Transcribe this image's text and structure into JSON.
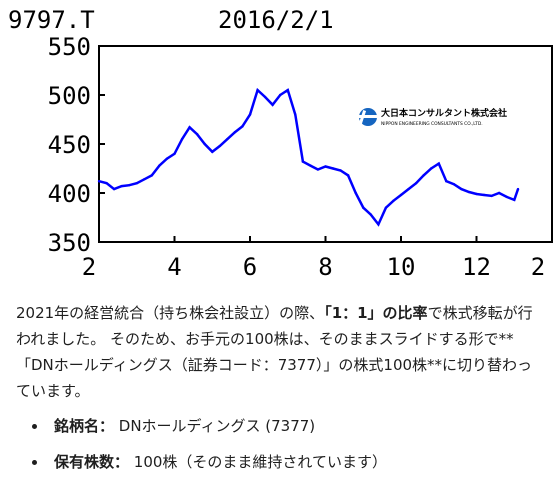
{
  "chart_data": {
    "type": "line",
    "title": "9797.T",
    "subtitle": "2016/2/1",
    "ylim": [
      350,
      550
    ],
    "yticks": [
      "550",
      "500",
      "450",
      "400",
      "350"
    ],
    "xticks": [
      "2",
      "4",
      "6",
      "8",
      "10",
      "12",
      "2"
    ],
    "grid": false,
    "logo": {
      "company_jp": "大日本コンサルタント株式会社",
      "company_en": "NIPPON ENGINEERING CONSULTANTS CO.,LTD."
    },
    "line_color": "#0000ff",
    "x": [
      2.0,
      2.2,
      2.4,
      2.6,
      2.8,
      3.0,
      3.2,
      3.4,
      3.6,
      3.8,
      4.0,
      4.2,
      4.4,
      4.6,
      4.8,
      5.0,
      5.2,
      5.4,
      5.6,
      5.8,
      6.0,
      6.2,
      6.4,
      6.6,
      6.8,
      7.0,
      7.2,
      7.4,
      7.6,
      7.8,
      8.0,
      8.2,
      8.4,
      8.6,
      8.8,
      9.0,
      9.2,
      9.4,
      9.6,
      9.8,
      10.0,
      10.2,
      10.4,
      10.6,
      10.8,
      11.0,
      11.2,
      11.4,
      11.6,
      11.8,
      12.0,
      12.2,
      12.4,
      12.6,
      12.8,
      13.0,
      13.1
    ],
    "values": [
      412,
      410,
      404,
      407,
      408,
      410,
      414,
      418,
      428,
      435,
      440,
      455,
      467,
      460,
      450,
      442,
      448,
      455,
      462,
      468,
      480,
      505,
      498,
      490,
      500,
      505,
      480,
      432,
      428,
      424,
      427,
      425,
      423,
      418,
      400,
      385,
      378,
      368,
      385,
      392,
      398,
      404,
      410,
      418,
      425,
      430,
      412,
      409,
      404,
      401,
      399,
      398,
      397,
      400,
      396,
      393,
      404
    ]
  },
  "paragraph": {
    "part1": "2021年の経営統合（持ち株会社設立）の際、",
    "bold": "「1：1」の比率",
    "part2": "で株式移転が行われました。 そのため、お手元の100株は、そのままスライドする形で**「DNホールディングス（証券コード：7377）」の株式100株**に切り替わっています。"
  },
  "bullets": [
    {
      "label": "銘柄名：",
      "value": " DNホールディングス (7377)"
    },
    {
      "label": "保有株数：",
      "value": " 100株（そのまま維持されています）"
    }
  ]
}
